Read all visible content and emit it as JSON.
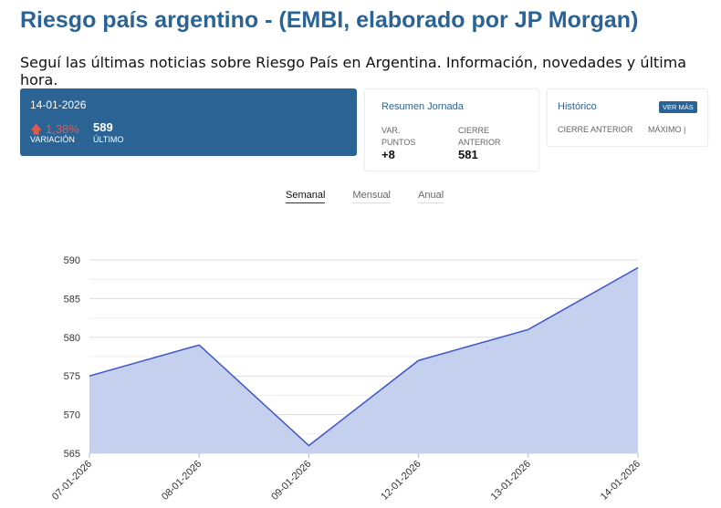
{
  "header": {
    "title": "Riesgo país argentino - (EMBI, elaborado por JP Morgan)",
    "subtitle": "Seguí las últimas noticias sobre Riesgo País en Argentina. Información, novedades y última hora."
  },
  "quote": {
    "date": "14-01-2026",
    "variation": "1,38%",
    "variation_label": "VARIACIÓN",
    "last": "589",
    "last_label": "ÚLTIMO",
    "up_color": "#e05a4e"
  },
  "summary": {
    "title": "Resumen Jornada",
    "var_label": "VAR. PUNTOS",
    "var_value": "+8",
    "close_label": "CIERRE ANTERIOR",
    "close_value": "581"
  },
  "history": {
    "title": "Histórico",
    "button": "VER MÁS",
    "col1": "CIERRE ANTERIOR",
    "col2": "MÁXIMO |"
  },
  "tabs": [
    "Semanal",
    "Mensual",
    "Anual"
  ],
  "chart_data": {
    "type": "area",
    "categories": [
      "07-01-2026",
      "08-01-2026",
      "09-01-2026",
      "12-01-2026",
      "13-01-2026",
      "14-01-2026"
    ],
    "values": [
      575,
      579,
      566,
      577,
      581,
      589
    ],
    "ylim": [
      565,
      590
    ],
    "yticks": [
      565,
      570,
      575,
      580,
      585,
      590
    ],
    "grid": true,
    "line_color": "#3d55c8",
    "fill_color": "#c5cfee"
  }
}
